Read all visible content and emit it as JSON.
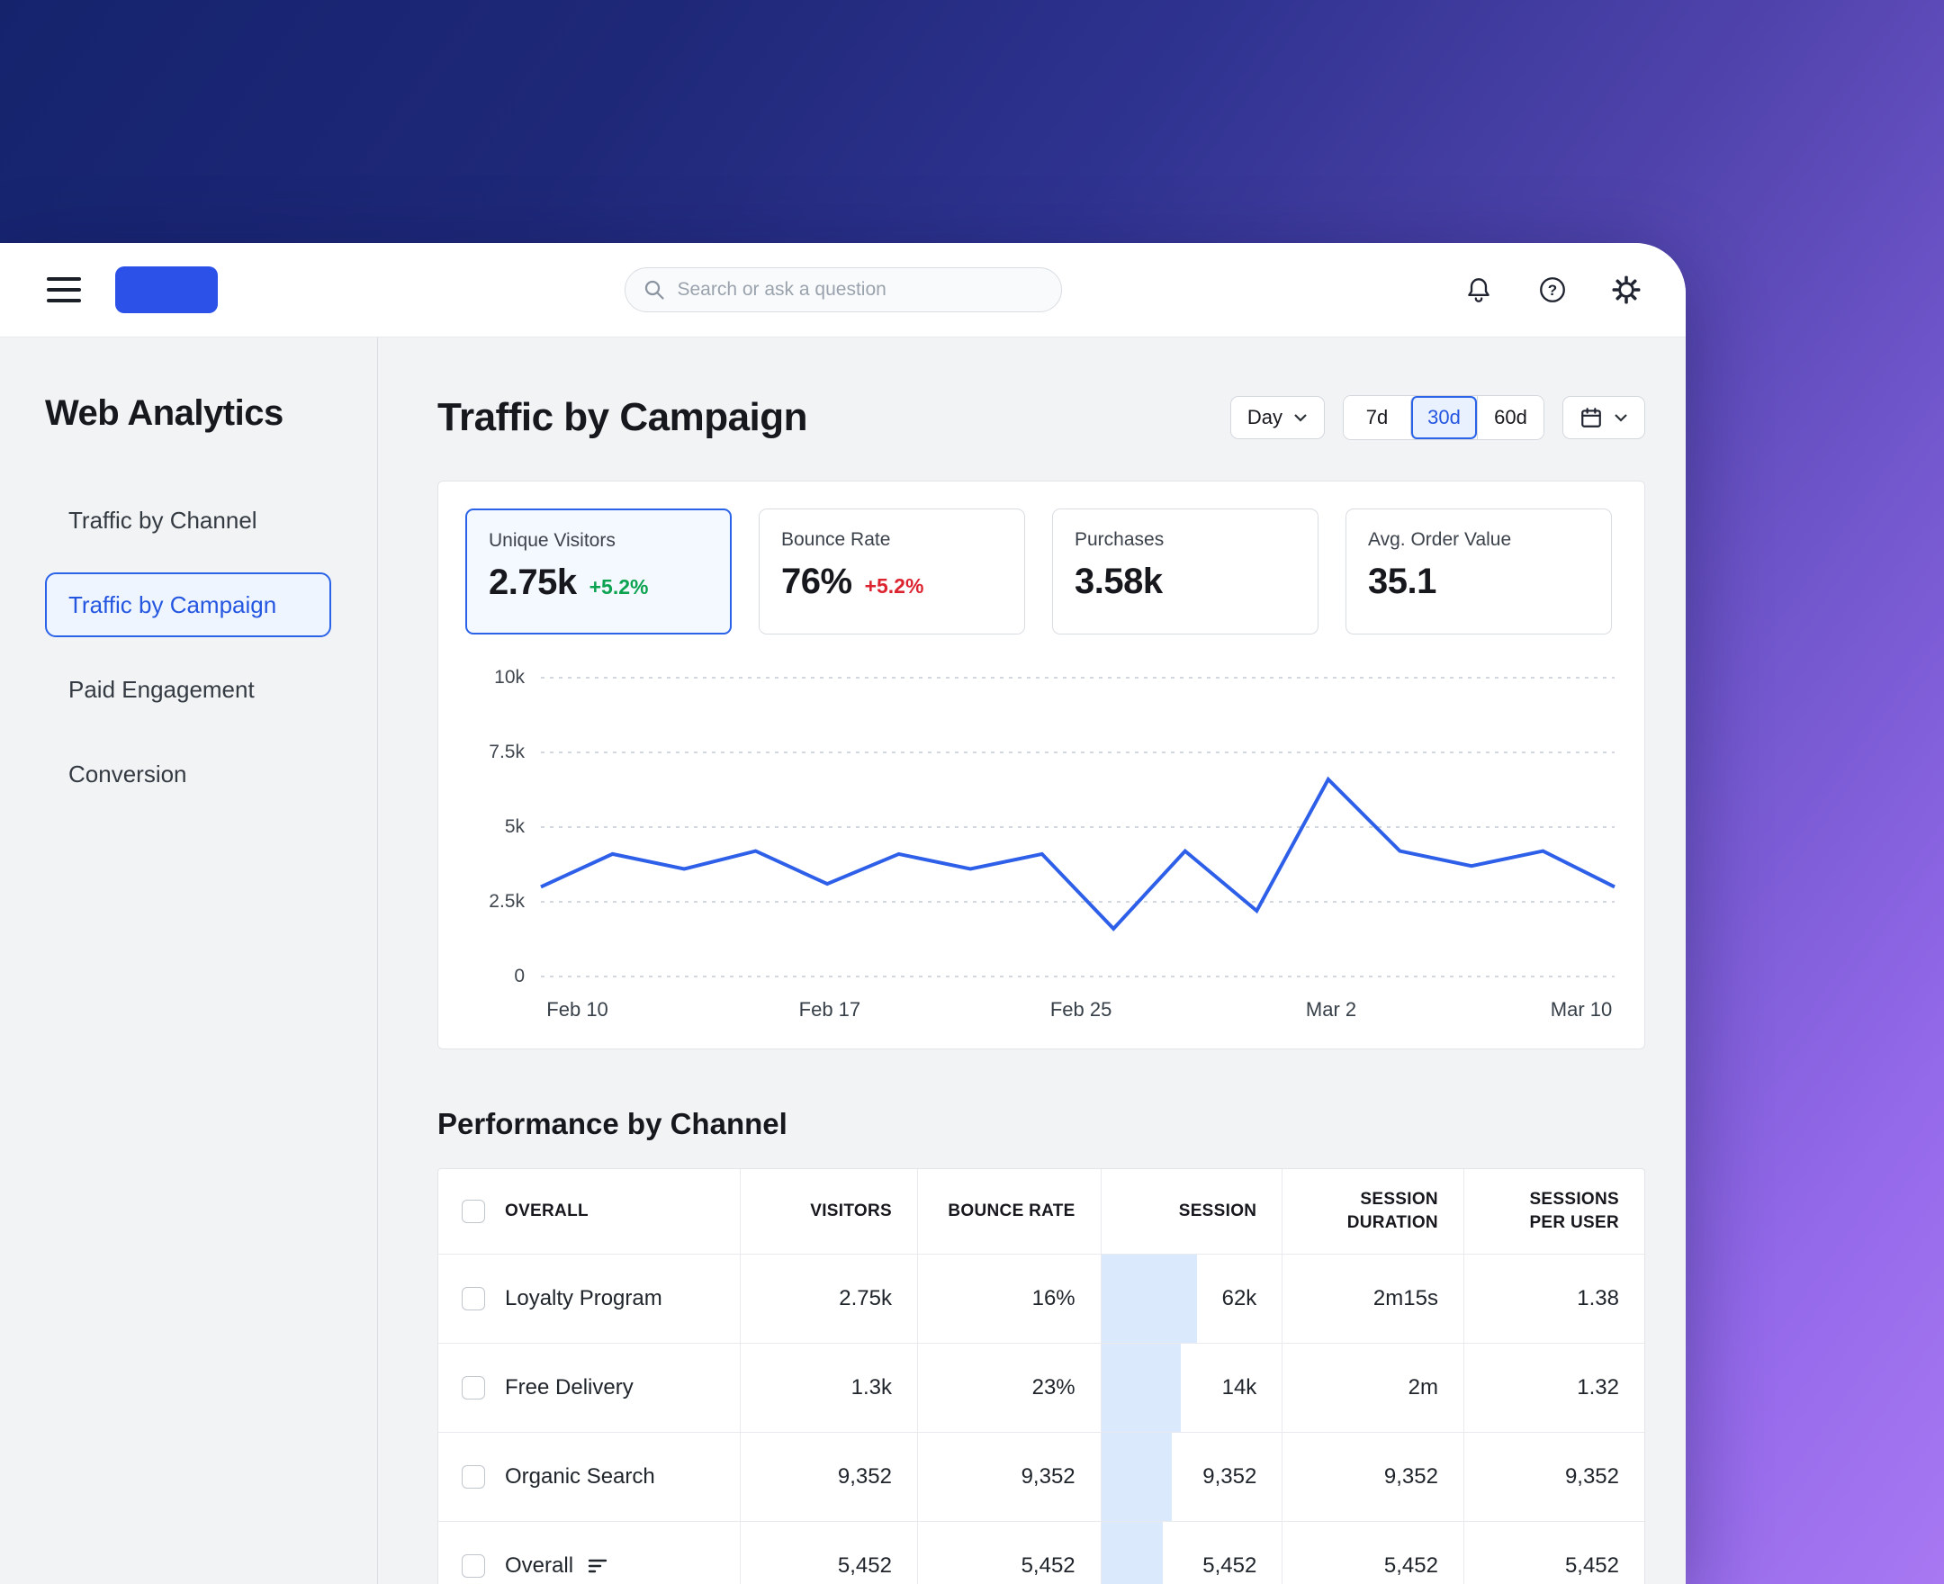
{
  "topbar": {
    "search_placeholder": "Search or ask a question"
  },
  "sidebar": {
    "title": "Web Analytics",
    "items": [
      {
        "label": "Traffic by Channel",
        "active": false
      },
      {
        "label": "Traffic by Campaign",
        "active": true
      },
      {
        "label": "Paid Engagement",
        "active": false
      },
      {
        "label": "Conversion",
        "active": false
      }
    ]
  },
  "main": {
    "title": "Traffic by Campaign",
    "controls": {
      "granularity": "Day",
      "ranges": [
        "7d",
        "30d",
        "60d"
      ],
      "active_range": "30d"
    },
    "kpis": [
      {
        "label": "Unique Visitors",
        "value": "2.75k",
        "delta": "+5.2%",
        "delta_color": "#0ca350",
        "selected": true
      },
      {
        "label": "Bounce Rate",
        "value": "76%",
        "delta": "+5.2%",
        "delta_color": "#dc2430",
        "selected": false
      },
      {
        "label": "Purchases",
        "value": "3.58k",
        "delta": null,
        "selected": false
      },
      {
        "label": "Avg. Order Value",
        "value": "35.1",
        "delta": null,
        "selected": false
      }
    ]
  },
  "chart_data": {
    "type": "line",
    "title": "Unique Visitors over time",
    "values": [
      3000,
      4100,
      3600,
      4200,
      3100,
      4100,
      3600,
      4100,
      1600,
      4200,
      2200,
      6600,
      4200,
      3700,
      4200,
      3000
    ],
    "ylim": [
      0,
      10000
    ],
    "yticks": [
      {
        "label": "0",
        "value": 0
      },
      {
        "label": "2.5k",
        "value": 2500
      },
      {
        "label": "5k",
        "value": 5000
      },
      {
        "label": "7.5k",
        "value": 7500
      },
      {
        "label": "10k",
        "value": 10000
      }
    ],
    "xticks": [
      {
        "label": "Feb 10",
        "pos": 0.034
      },
      {
        "label": "Feb 17",
        "pos": 0.269
      },
      {
        "label": "Feb 25",
        "pos": 0.503
      },
      {
        "label": "Mar 2",
        "pos": 0.736
      },
      {
        "label": "Mar 10",
        "pos": 0.969
      }
    ],
    "line_color": "#2e5fe8",
    "grid": "dotted-horizontal",
    "legend": "none"
  },
  "table": {
    "title": "Performance by Channel",
    "columns": [
      "OVERALL",
      "VISITORS",
      "BOUNCE RATE",
      "SESSION",
      "SESSION DURATION",
      "SESSIONS PER USER"
    ],
    "session_bar_color": "#dbe9fc",
    "rows": [
      {
        "name": "Loyalty Program",
        "visitors": "2.75k",
        "bounce_rate": "16%",
        "session": "62k",
        "session_bar": 0.53,
        "session_duration": "2m15s",
        "sessions_per_user": "1.38",
        "icon": false
      },
      {
        "name": "Free Delivery",
        "visitors": "1.3k",
        "bounce_rate": "23%",
        "session": "14k",
        "session_bar": 0.44,
        "session_duration": "2m",
        "sessions_per_user": "1.32",
        "icon": false
      },
      {
        "name": "Organic Search",
        "visitors": "9,352",
        "bounce_rate": "9,352",
        "session": "9,352",
        "session_bar": 0.39,
        "session_duration": "9,352",
        "sessions_per_user": "9,352",
        "icon": false
      },
      {
        "name": "Overall",
        "visitors": "5,452",
        "bounce_rate": "5,452",
        "session": "5,452",
        "session_bar": 0.34,
        "session_duration": "5,452",
        "sessions_per_user": "5,452",
        "icon": true
      }
    ]
  },
  "colors": {
    "accent": "#2a62e8",
    "accent_bg": "#e9f1fe",
    "positive": "#0ca350",
    "negative": "#dc2430"
  }
}
